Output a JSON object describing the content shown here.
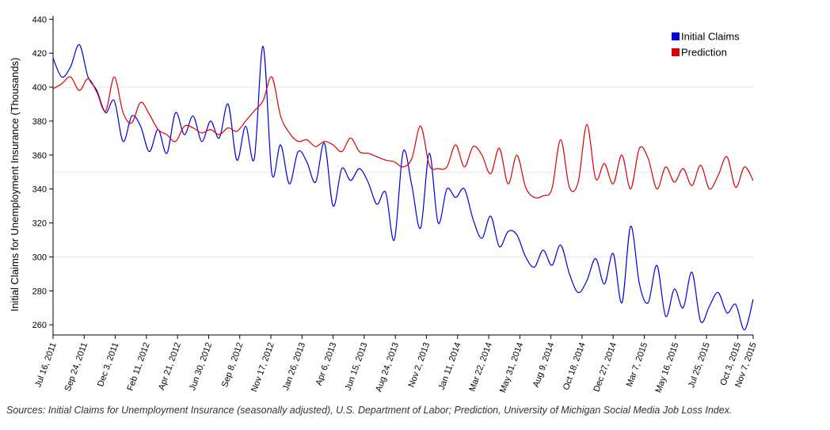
{
  "chart_data": {
    "type": "line",
    "ylabel": "Initial Claims for Unemployment Insurance (Thousands)",
    "ylim": [
      254,
      442
    ],
    "y_ticks": [
      260,
      280,
      300,
      320,
      340,
      360,
      380,
      400,
      420,
      440
    ],
    "y_gridlines": [
      300,
      350,
      400
    ],
    "x_range": [
      "2011-07-16",
      "2015-11-07"
    ],
    "x_tick_labels": [
      "Jul 16, 2011",
      "Sep 24, 2011",
      "Dec 3, 2011",
      "Feb 11, 2012",
      "Apr 21, 2012",
      "Jun 30, 2012",
      "Sep 8, 2012",
      "Nov 17, 2012",
      "Jan 26, 2013",
      "Apr 6, 2013",
      "Jun 15, 2013",
      "Aug 24, 2013",
      "Nov 2, 2013",
      "Jan 11, 2014",
      "Mar 22, 2014",
      "May 31, 2014",
      "Aug 9, 2014",
      "Oct 18, 2014",
      "Dec 27, 2014",
      "Mar 7, 2015",
      "May 16, 2015",
      "Jul 25, 2015",
      "Oct 3, 2015",
      "Nov 7, 2015"
    ],
    "legend_position": "top-right",
    "series": [
      {
        "name": "Initial Claims",
        "color": "#0000dd",
        "values": [
          417,
          406,
          412,
          425,
          406,
          398,
          385,
          392,
          368,
          383,
          377,
          362,
          375,
          361,
          385,
          372,
          383,
          368,
          380,
          370,
          390,
          357,
          377,
          358,
          424,
          349,
          366,
          343,
          362,
          356,
          344,
          367,
          330,
          352,
          345,
          352,
          344,
          331,
          338,
          310,
          362,
          342,
          317,
          361,
          320,
          340,
          335,
          340,
          322,
          311,
          324,
          306,
          315,
          313,
          300,
          294,
          304,
          295,
          307,
          290,
          279,
          286,
          299,
          284,
          302,
          273,
          318,
          284,
          273,
          295,
          265,
          281,
          270,
          291,
          262,
          271,
          279,
          267,
          272,
          257,
          275
        ]
      },
      {
        "name": "Prediction",
        "color": "#dd0000",
        "values": [
          399,
          402,
          406,
          398,
          405,
          397,
          386,
          406,
          385,
          379,
          391,
          384,
          375,
          372,
          368,
          377,
          376,
          373,
          375,
          372,
          376,
          374,
          380,
          386,
          392,
          406,
          383,
          373,
          368,
          369,
          365,
          368,
          366,
          362,
          370,
          362,
          361,
          359,
          357,
          356,
          353,
          358,
          377,
          354,
          352,
          353,
          366,
          353,
          365,
          360,
          349,
          364,
          343,
          360,
          341,
          335,
          336,
          340,
          369,
          341,
          344,
          378,
          346,
          355,
          343,
          360,
          340,
          364,
          358,
          340,
          353,
          344,
          352,
          342,
          354,
          340,
          348,
          359,
          341,
          353,
          345
        ]
      }
    ]
  },
  "source_note": "Sources: Initial Claims for Unemployment Insurance (seasonally adjusted), U.S. Department of Labor; Prediction, University of Michigan Social Media Job Loss Index."
}
